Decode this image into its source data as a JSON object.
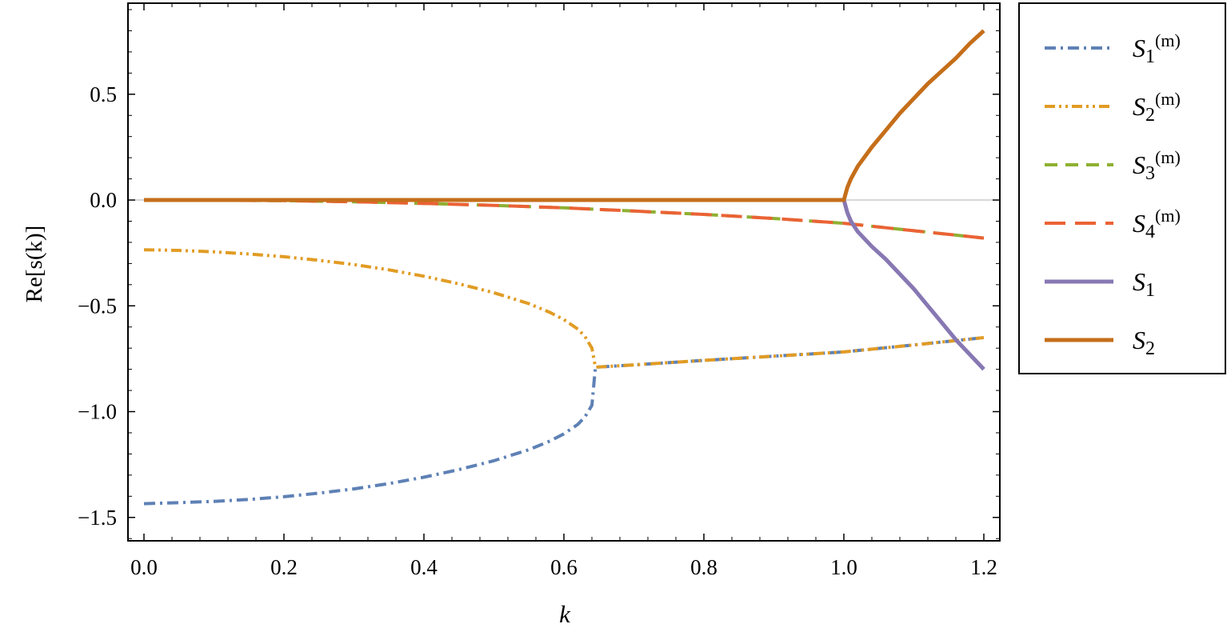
{
  "chart_data": {
    "type": "line",
    "title": "",
    "xlabel": "k",
    "ylabel": "Re[s(k)]",
    "xlim": [
      0.0,
      1.2
    ],
    "ylim": [
      -1.55,
      0.9
    ],
    "xticks": [
      {
        "value": 0.0,
        "label": "0.0"
      },
      {
        "value": 0.2,
        "label": "0.2"
      },
      {
        "value": 0.4,
        "label": "0.4"
      },
      {
        "value": 0.6,
        "label": "0.6"
      },
      {
        "value": 0.8,
        "label": "0.8"
      },
      {
        "value": 1.0,
        "label": "1.0"
      },
      {
        "value": 1.2,
        "label": "1.2"
      }
    ],
    "yticks": [
      {
        "value": 0.5,
        "label": "0.5"
      },
      {
        "value": 0.0,
        "label": "0.0"
      },
      {
        "value": -0.5,
        "label": "−0.5"
      },
      {
        "value": -1.0,
        "label": "−1.0"
      },
      {
        "value": -1.5,
        "label": "−1.5"
      }
    ],
    "grid": false,
    "zero_line": true,
    "legend_position": "right",
    "series": [
      {
        "name_base": "S",
        "name_sub": "1",
        "name_sup": "(m)",
        "color": "#5E81B5",
        "style": "dashdot",
        "x": [
          0.0,
          0.05,
          0.1,
          0.15,
          0.2,
          0.25,
          0.3,
          0.35,
          0.4,
          0.45,
          0.5,
          0.55,
          0.58,
          0.6,
          0.62,
          0.63,
          0.64,
          0.645,
          0.7,
          0.8,
          0.9,
          1.0,
          1.1,
          1.2
        ],
        "y": [
          -1.435,
          -1.43,
          -1.424,
          -1.415,
          -1.402,
          -1.385,
          -1.365,
          -1.34,
          -1.31,
          -1.274,
          -1.232,
          -1.18,
          -1.139,
          -1.105,
          -1.06,
          -1.025,
          -0.97,
          -0.79,
          -0.779,
          -0.758,
          -0.738,
          -0.718,
          -0.685,
          -0.65
        ]
      },
      {
        "name_base": "S",
        "name_sub": "2",
        "name_sup": "(m)",
        "color": "#E19C24",
        "style": "dashdotdot",
        "x": [
          0.0,
          0.05,
          0.1,
          0.15,
          0.2,
          0.25,
          0.3,
          0.35,
          0.4,
          0.45,
          0.5,
          0.55,
          0.58,
          0.6,
          0.62,
          0.63,
          0.64,
          0.645,
          0.7,
          0.8,
          0.9,
          1.0,
          1.1,
          1.2
        ],
        "y": [
          -0.235,
          -0.238,
          -0.245,
          -0.255,
          -0.268,
          -0.285,
          -0.305,
          -0.33,
          -0.36,
          -0.396,
          -0.438,
          -0.49,
          -0.531,
          -0.565,
          -0.61,
          -0.645,
          -0.7,
          -0.79,
          -0.779,
          -0.758,
          -0.738,
          -0.718,
          -0.685,
          -0.65
        ]
      },
      {
        "name_base": "S",
        "name_sub": "3",
        "name_sup": "(m)",
        "color": "#8FB032",
        "style": "dashed",
        "x": [
          0.0,
          0.1,
          0.2,
          0.3,
          0.4,
          0.5,
          0.6,
          0.7,
          0.8,
          0.9,
          1.0,
          1.1,
          1.2
        ],
        "y": [
          0.0,
          -0.001,
          -0.003,
          -0.008,
          -0.016,
          -0.025,
          -0.037,
          -0.052,
          -0.068,
          -0.087,
          -0.11,
          -0.145,
          -0.18
        ]
      },
      {
        "name_base": "S",
        "name_sub": "4",
        "name_sup": "(m)",
        "color": "#EB6235",
        "style": "longdash",
        "x": [
          0.0,
          0.1,
          0.2,
          0.3,
          0.4,
          0.5,
          0.6,
          0.7,
          0.8,
          0.9,
          1.0,
          1.1,
          1.2
        ],
        "y": [
          0.0,
          -0.001,
          -0.003,
          -0.008,
          -0.016,
          -0.025,
          -0.037,
          -0.052,
          -0.068,
          -0.087,
          -0.11,
          -0.145,
          -0.18
        ]
      },
      {
        "name_base": "S",
        "name_sub": "1",
        "name_sup": "",
        "color": "#8778B3",
        "style": "solid",
        "x": [
          0.0,
          0.2,
          0.4,
          0.6,
          0.8,
          0.99,
          1.0,
          1.005,
          1.01,
          1.02,
          1.04,
          1.06,
          1.08,
          1.1,
          1.12,
          1.14,
          1.16,
          1.18,
          1.2
        ],
        "y": [
          0.0,
          0.0,
          0.0,
          0.0,
          0.0,
          0.0,
          0.0,
          -0.06,
          -0.1,
          -0.15,
          -0.22,
          -0.28,
          -0.35,
          -0.42,
          -0.5,
          -0.58,
          -0.66,
          -0.73,
          -0.8
        ]
      },
      {
        "name_base": "S",
        "name_sub": "2",
        "name_sup": "",
        "color": "#C56E1A",
        "style": "solid",
        "x": [
          0.0,
          0.2,
          0.4,
          0.6,
          0.8,
          0.99,
          1.0,
          1.005,
          1.01,
          1.02,
          1.04,
          1.06,
          1.08,
          1.1,
          1.12,
          1.14,
          1.16,
          1.18,
          1.2
        ],
        "y": [
          0.0,
          0.0,
          0.0,
          0.0,
          0.0,
          0.0,
          0.0,
          0.06,
          0.1,
          0.16,
          0.25,
          0.33,
          0.41,
          0.48,
          0.55,
          0.61,
          0.67,
          0.74,
          0.8
        ]
      }
    ]
  }
}
